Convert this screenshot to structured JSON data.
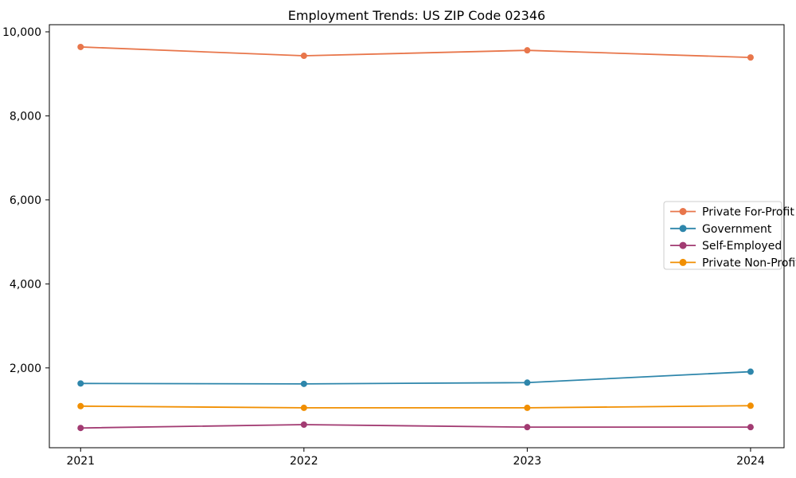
{
  "figure": {
    "title": "Employment Trends: US ZIP Code 02346"
  },
  "chart_data": {
    "type": "line",
    "title": "Employment Trends: US ZIP Code 02346",
    "xlabel": "",
    "ylabel": "",
    "categories": [
      2021,
      2022,
      2023,
      2024
    ],
    "x_tick_labels": [
      "2021",
      "2022",
      "2023",
      "2024"
    ],
    "series": [
      {
        "name": "Private For-Profit",
        "color": "#E8764B",
        "values": [
          9640,
          9430,
          9560,
          9390
        ]
      },
      {
        "name": "Government",
        "color": "#2E86AB",
        "values": [
          1630,
          1620,
          1650,
          1910
        ]
      },
      {
        "name": "Self-Employed",
        "color": "#A23B72",
        "values": [
          570,
          650,
          590,
          590
        ]
      },
      {
        "name": "Private Non-Profit",
        "color": "#F18F01",
        "values": [
          1090,
          1050,
          1050,
          1100
        ]
      }
    ],
    "yticks": [
      2000,
      4000,
      6000,
      8000,
      10000
    ],
    "y_tick_labels": [
      "2,000",
      "4,000",
      "6,000",
      "8,000",
      "10,000"
    ],
    "ylim": [
      100,
      10170
    ],
    "xlim": [
      2020.86,
      2024.15
    ],
    "grid": false,
    "legend": {
      "position": "center right",
      "entries": [
        "Private For-Profit",
        "Government",
        "Self-Employed",
        "Private Non-Profit"
      ]
    },
    "colors": {
      "background": "#ffffff",
      "axis": "#000000",
      "legend_border": "#cccccc",
      "text": "#000000"
    }
  }
}
